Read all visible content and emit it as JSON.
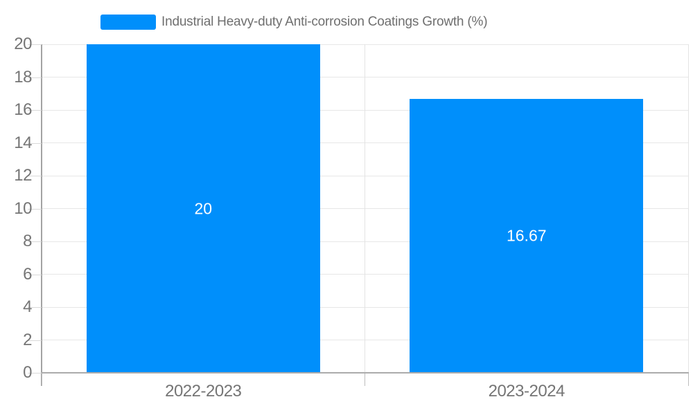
{
  "chart_data": {
    "type": "bar",
    "title": "Industrial Heavy-duty Anti-corrosion Coatings Growth (%)",
    "legend": {
      "label": "Industrial Heavy-duty Anti-corrosion Coatings Growth (%)",
      "position": "top"
    },
    "categories": [
      "2022-2023",
      "2023-2024"
    ],
    "values": [
      20,
      16.67
    ],
    "value_labels": [
      "20",
      "16.67"
    ],
    "xlabel": "",
    "ylabel": "",
    "ylim": [
      0,
      20
    ],
    "yticks": [
      0,
      2,
      4,
      6,
      8,
      10,
      12,
      14,
      16,
      18,
      20
    ],
    "grid": true,
    "colors": {
      "bar": "#008FFB",
      "data_label": "#FFFFFF",
      "axis_text": "#757575",
      "gridline": "#E7E7E7"
    }
  }
}
